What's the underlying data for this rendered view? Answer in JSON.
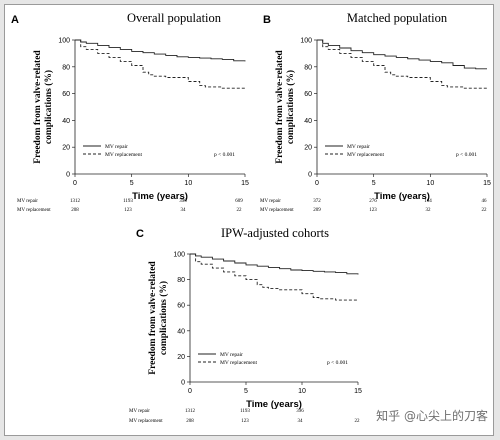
{
  "chart_data": [
    {
      "type": "line",
      "panel_label": "A",
      "title": "Overall population",
      "xlabel": "Time (years)",
      "ylabel": [
        "Freedom from valve-related",
        "complications (%)"
      ],
      "xlim": [
        0,
        15
      ],
      "ylim": [
        0,
        100
      ],
      "x_ticks": [
        0,
        5,
        10,
        15
      ],
      "y_ticks": [
        0,
        20,
        40,
        60,
        80,
        100
      ],
      "legend_position": "bottom-left",
      "legend": [
        "MV repair",
        "MV replacement"
      ],
      "p_value": "p < 0.001",
      "series": [
        {
          "name": "MV repair",
          "style": "solid",
          "x": [
            0,
            0.5,
            1,
            2,
            3,
            4,
            5,
            6,
            7,
            8,
            9,
            10,
            11,
            12,
            13,
            14,
            15
          ],
          "y": [
            100,
            98.5,
            97.5,
            96,
            94.5,
            93,
            91.5,
            90.5,
            89.5,
            88.5,
            87.5,
            87,
            86.5,
            86,
            85.5,
            84.5,
            84
          ]
        },
        {
          "name": "MV replacement",
          "style": "dashed",
          "x": [
            0,
            0.5,
            1,
            2,
            3,
            4,
            5,
            6,
            6.5,
            7,
            8,
            9,
            10,
            11,
            11.5,
            12,
            13,
            14,
            15
          ],
          "y": [
            100,
            95,
            93,
            90,
            87,
            84,
            81,
            76,
            74,
            73,
            72,
            72,
            69,
            66,
            65,
            65,
            64,
            64,
            64
          ]
        }
      ],
      "risk_table": {
        "rows": [
          {
            "label": "MV repair",
            "values": [
              "1312",
              "1193",
              "396",
              "609"
            ]
          },
          {
            "label": "MV replacement",
            "values": [
              "208",
              "123",
              "34",
              "22"
            ]
          }
        ]
      }
    },
    {
      "type": "line",
      "panel_label": "B",
      "title": "Matched population",
      "xlabel": "Time (years)",
      "ylabel": [
        "Freedom from valve-related",
        "complications (%)"
      ],
      "xlim": [
        0,
        15
      ],
      "ylim": [
        0,
        100
      ],
      "x_ticks": [
        0,
        5,
        10,
        15
      ],
      "y_ticks": [
        0,
        20,
        40,
        60,
        80,
        100
      ],
      "legend_position": "bottom-left",
      "legend": [
        "MV repair",
        "MV replacement"
      ],
      "p_value": "p < 0.001",
      "series": [
        {
          "name": "MV repair",
          "style": "solid",
          "x": [
            0,
            0.5,
            1,
            2,
            3,
            4,
            5,
            6,
            7,
            8,
            9,
            10,
            11,
            12,
            13,
            14,
            15
          ],
          "y": [
            100,
            97.5,
            96,
            94,
            92,
            90.5,
            89,
            88,
            87,
            86,
            85,
            84,
            83,
            81,
            79,
            78.5,
            78.5
          ]
        },
        {
          "name": "MV replacement",
          "style": "dashed",
          "x": [
            0,
            0.5,
            1,
            2,
            3,
            4,
            5,
            6,
            6.5,
            7,
            8,
            9,
            10,
            11,
            11.5,
            12,
            13,
            14,
            15
          ],
          "y": [
            100,
            95,
            93,
            90,
            87,
            84,
            81,
            76,
            74,
            73,
            72,
            72,
            69,
            66,
            65,
            65,
            64,
            64,
            64
          ]
        }
      ],
      "risk_table": {
        "rows": [
          {
            "label": "MV repair",
            "values": [
              "372",
              "276",
              "164",
              "46"
            ]
          },
          {
            "label": "MV replacement",
            "values": [
              "209",
              "123",
              "32",
              "22"
            ]
          }
        ]
      }
    },
    {
      "type": "line",
      "panel_label": "C",
      "title": "IPW-adjusted cohorts",
      "xlabel": "Time (years)",
      "ylabel": [
        "Freedom from valve-related",
        "complications (%)"
      ],
      "xlim": [
        0,
        15
      ],
      "ylim": [
        0,
        100
      ],
      "x_ticks": [
        0,
        5,
        10,
        15
      ],
      "y_ticks": [
        0,
        20,
        40,
        60,
        80,
        100
      ],
      "legend_position": "bottom-left",
      "legend": [
        "MV repair",
        "MV replacement"
      ],
      "p_value": "p < 0.001",
      "series": [
        {
          "name": "MV repair",
          "style": "solid",
          "x": [
            0,
            0.5,
            1,
            2,
            3,
            4,
            5,
            6,
            7,
            8,
            9,
            10,
            11,
            12,
            13,
            14,
            15
          ],
          "y": [
            100,
            98.5,
            97.5,
            96,
            94.5,
            93,
            91.5,
            90.5,
            89.5,
            88.5,
            87.5,
            87,
            86.5,
            86,
            85.5,
            84.5,
            84
          ]
        },
        {
          "name": "MV replacement",
          "style": "dashed",
          "x": [
            0,
            0.5,
            1,
            2,
            3,
            4,
            5,
            6,
            6.5,
            7,
            8,
            9,
            10,
            11,
            11.5,
            12,
            13,
            14,
            15
          ],
          "y": [
            100,
            94,
            92,
            89,
            86,
            83,
            80,
            76,
            74,
            73,
            72,
            72,
            69,
            66,
            65,
            65,
            64,
            64,
            64
          ]
        }
      ],
      "risk_table": {
        "rows": [
          {
            "label": "MV repair",
            "values": [
              "1312",
              "1193",
              "396",
              ""
            ]
          },
          {
            "label": "MV replacement",
            "values": [
              "208",
              "123",
              "34",
              "22"
            ]
          }
        ]
      }
    }
  ],
  "watermark": "知乎 @心尖上的刀客"
}
